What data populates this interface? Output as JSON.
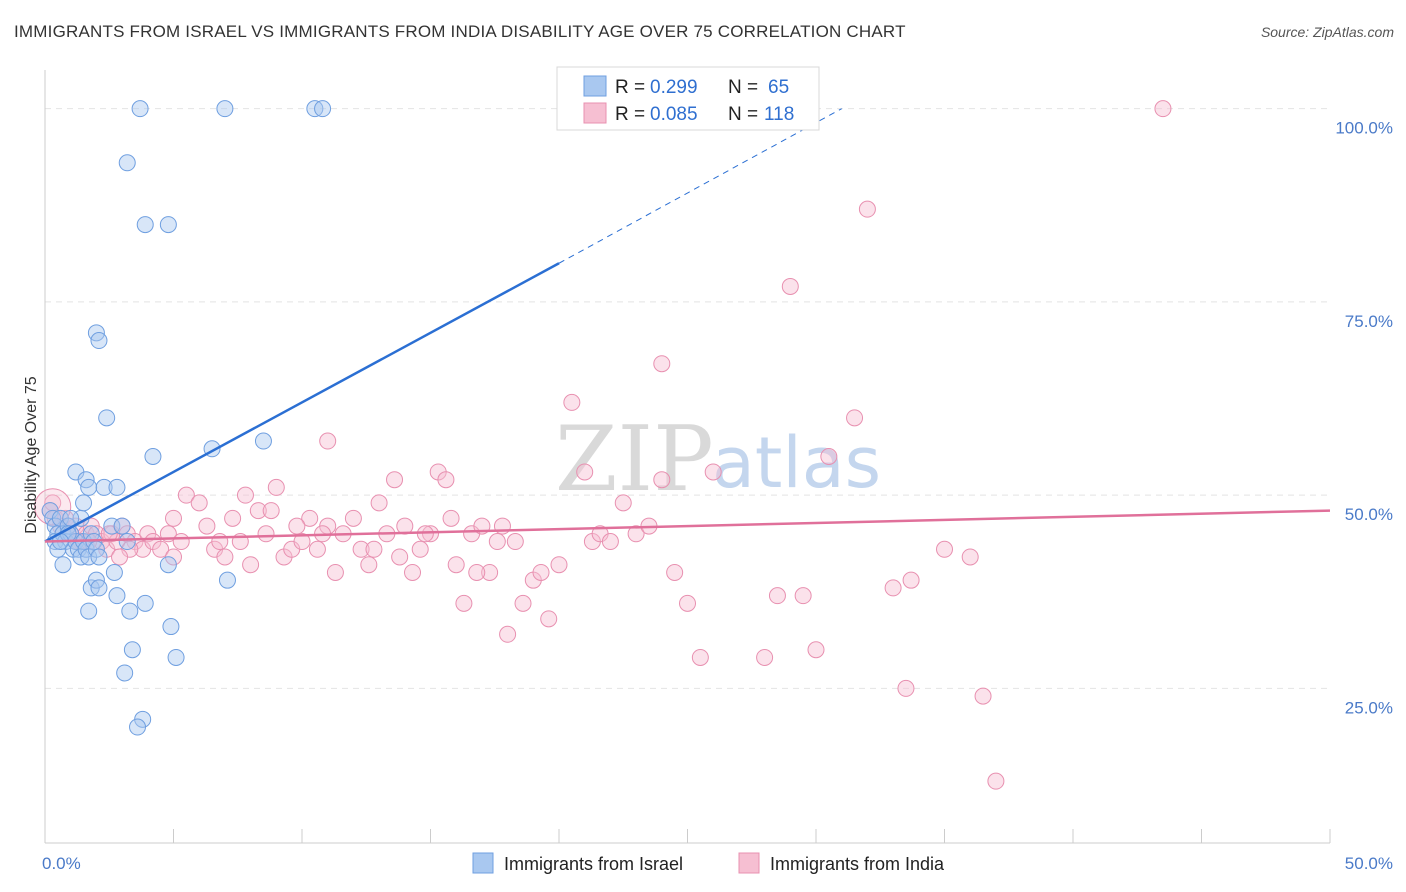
{
  "header": {
    "title": "IMMIGRANTS FROM ISRAEL VS IMMIGRANTS FROM INDIA DISABILITY AGE OVER 75 CORRELATION CHART",
    "source": "Source: ZipAtlas.com"
  },
  "watermark": {
    "zip": "ZIP",
    "atlas": "atlas"
  },
  "legend": {
    "rows": [
      {
        "r_label": "R =",
        "r_value": "0.299",
        "n_label": "N =",
        "n_value": "65"
      },
      {
        "r_label": "R =",
        "r_value": "0.085",
        "n_label": "N =",
        "n_value": "118"
      }
    ]
  },
  "bottom_legend": {
    "israel": "Immigrants from Israel",
    "india": "Immigrants from India"
  },
  "colors": {
    "israel_fill": "#a9c8f0",
    "israel_stroke": "#6f9fe0",
    "israel_line": "#2b6fd3",
    "india_fill": "#f6bfd2",
    "india_stroke": "#e890b0",
    "india_line": "#e0709a",
    "grid": "#e4e4e4",
    "tick_text": "#4a7ac8"
  },
  "chart_data": {
    "type": "scatter",
    "title": "IMMIGRANTS FROM ISRAEL VS IMMIGRANTS FROM INDIA DISABILITY AGE OVER 75 CORRELATION CHART",
    "xlabel": "",
    "ylabel": "Disability Age Over 75",
    "xlim": [
      0,
      50
    ],
    "ylim": [
      5,
      105
    ],
    "x_tick_labels": [
      "0.0%",
      "50.0%"
    ],
    "y_ticks": [
      25,
      50,
      75,
      100
    ],
    "y_tick_labels": [
      "25.0%",
      "50.0%",
      "75.0%",
      "100.0%"
    ],
    "grid": true,
    "legend_position": "top-center",
    "series": [
      {
        "name": "Immigrants from Israel",
        "r": 0.299,
        "n": 65,
        "trend": {
          "x0": 0,
          "y0": 44,
          "x1": 20,
          "y1": 80,
          "dashed_to_x": 31,
          "dashed_to_y": 100
        },
        "points": [
          [
            0.2,
            48
          ],
          [
            0.3,
            47
          ],
          [
            0.4,
            46
          ],
          [
            0.5,
            45
          ],
          [
            0.6,
            47
          ],
          [
            0.4,
            44
          ],
          [
            0.7,
            45
          ],
          [
            0.8,
            44
          ],
          [
            0.9,
            46
          ],
          [
            1.0,
            45
          ],
          [
            1.1,
            43
          ],
          [
            1.2,
            44
          ],
          [
            1.3,
            43
          ],
          [
            1.4,
            42
          ],
          [
            1.5,
            44
          ],
          [
            1.6,
            43
          ],
          [
            1.7,
            42
          ],
          [
            1.8,
            45
          ],
          [
            1.9,
            44
          ],
          [
            2.0,
            43
          ],
          [
            0.5,
            43
          ],
          [
            0.7,
            41
          ],
          [
            1.2,
            53
          ],
          [
            1.6,
            52
          ],
          [
            1.7,
            51
          ],
          [
            2.3,
            51
          ],
          [
            2.8,
            51
          ],
          [
            1.4,
            47
          ],
          [
            1.5,
            49
          ],
          [
            2.6,
            46
          ],
          [
            2.1,
            42
          ],
          [
            3.0,
            46
          ],
          [
            3.2,
            44
          ],
          [
            1.8,
            38
          ],
          [
            2.0,
            39
          ],
          [
            2.1,
            38
          ],
          [
            2.7,
            40
          ],
          [
            2.8,
            37
          ],
          [
            3.9,
            36
          ],
          [
            1.7,
            35
          ],
          [
            3.3,
            35
          ],
          [
            3.4,
            30
          ],
          [
            3.1,
            27
          ],
          [
            3.8,
            21
          ],
          [
            3.6,
            20
          ],
          [
            4.2,
            55
          ],
          [
            4.9,
            33
          ],
          [
            5.1,
            29
          ],
          [
            4.8,
            41
          ],
          [
            6.5,
            56
          ],
          [
            7.1,
            39
          ],
          [
            8.5,
            57
          ],
          [
            3.7,
            100
          ],
          [
            7.0,
            100
          ],
          [
            10.5,
            100
          ],
          [
            10.8,
            100
          ],
          [
            3.2,
            93
          ],
          [
            3.9,
            85
          ],
          [
            4.8,
            85
          ],
          [
            2.0,
            71
          ],
          [
            2.1,
            70
          ],
          [
            2.4,
            60
          ],
          [
            1.0,
            47
          ],
          [
            0.9,
            45
          ],
          [
            0.6,
            44
          ]
        ]
      },
      {
        "name": "Immigrants from India",
        "r": 0.085,
        "n": 118,
        "trend": {
          "x0": 0,
          "y0": 44,
          "x1": 50,
          "y1": 48
        },
        "points": [
          [
            0.2,
            48
          ],
          [
            0.4,
            47
          ],
          [
            0.6,
            46
          ],
          [
            0.8,
            47
          ],
          [
            1.0,
            45
          ],
          [
            1.2,
            46
          ],
          [
            1.4,
            44
          ],
          [
            1.6,
            45
          ],
          [
            1.8,
            46
          ],
          [
            2.0,
            45
          ],
          [
            2.2,
            44
          ],
          [
            2.4,
            43
          ],
          [
            2.6,
            45
          ],
          [
            2.8,
            44
          ],
          [
            3.0,
            46
          ],
          [
            3.2,
            45
          ],
          [
            3.5,
            44
          ],
          [
            3.8,
            43
          ],
          [
            4.0,
            45
          ],
          [
            4.2,
            44
          ],
          [
            4.5,
            43
          ],
          [
            4.8,
            45
          ],
          [
            5.0,
            42
          ],
          [
            5.3,
            44
          ],
          [
            5.5,
            50
          ],
          [
            6.0,
            49
          ],
          [
            6.3,
            46
          ],
          [
            6.6,
            43
          ],
          [
            7.0,
            42
          ],
          [
            7.3,
            47
          ],
          [
            7.6,
            44
          ],
          [
            8.0,
            41
          ],
          [
            8.3,
            48
          ],
          [
            8.6,
            45
          ],
          [
            9.0,
            51
          ],
          [
            9.3,
            42
          ],
          [
            9.6,
            43
          ],
          [
            10.0,
            44
          ],
          [
            10.3,
            47
          ],
          [
            10.6,
            43
          ],
          [
            11.0,
            46
          ],
          [
            11.3,
            40
          ],
          [
            11.6,
            45
          ],
          [
            12.0,
            47
          ],
          [
            12.3,
            43
          ],
          [
            12.6,
            41
          ],
          [
            13.0,
            49
          ],
          [
            13.3,
            45
          ],
          [
            13.6,
            52
          ],
          [
            14.0,
            46
          ],
          [
            14.3,
            40
          ],
          [
            14.6,
            43
          ],
          [
            15.0,
            45
          ],
          [
            15.3,
            53
          ],
          [
            15.6,
            52
          ],
          [
            16.0,
            41
          ],
          [
            16.3,
            36
          ],
          [
            16.6,
            45
          ],
          [
            17.0,
            46
          ],
          [
            17.3,
            40
          ],
          [
            17.6,
            44
          ],
          [
            18.0,
            32
          ],
          [
            18.3,
            44
          ],
          [
            18.6,
            36
          ],
          [
            19.0,
            39
          ],
          [
            19.3,
            40
          ],
          [
            19.6,
            34
          ],
          [
            20.0,
            41
          ],
          [
            20.5,
            62
          ],
          [
            21.0,
            53
          ],
          [
            21.3,
            44
          ],
          [
            21.6,
            45
          ],
          [
            22.0,
            44
          ],
          [
            22.5,
            49
          ],
          [
            23.0,
            45
          ],
          [
            23.5,
            46
          ],
          [
            24.0,
            52
          ],
          [
            24.5,
            40
          ],
          [
            25.0,
            36
          ],
          [
            25.5,
            29
          ],
          [
            26.0,
            53
          ],
          [
            28.0,
            29
          ],
          [
            28.5,
            37
          ],
          [
            29.5,
            37
          ],
          [
            30.0,
            30
          ],
          [
            29.0,
            77
          ],
          [
            30.5,
            55
          ],
          [
            32.0,
            87
          ],
          [
            33.0,
            38
          ],
          [
            33.5,
            25
          ],
          [
            33.7,
            39
          ],
          [
            35.0,
            43
          ],
          [
            36.0,
            42
          ],
          [
            36.5,
            24
          ],
          [
            37.0,
            13
          ],
          [
            24.0,
            67
          ],
          [
            31.5,
            60
          ],
          [
            43.5,
            100
          ],
          [
            11.0,
            57
          ],
          [
            5.0,
            47
          ],
          [
            1.3,
            44
          ],
          [
            2.5,
            45
          ],
          [
            3.3,
            43
          ],
          [
            6.8,
            44
          ],
          [
            7.8,
            50
          ],
          [
            8.8,
            48
          ],
          [
            9.8,
            46
          ],
          [
            10.8,
            45
          ],
          [
            12.8,
            43
          ],
          [
            13.8,
            42
          ],
          [
            14.8,
            45
          ],
          [
            15.8,
            47
          ],
          [
            16.8,
            40
          ],
          [
            17.8,
            46
          ],
          [
            0.3,
            49
          ],
          [
            0.9,
            46
          ],
          [
            1.7,
            44
          ],
          [
            2.9,
            42
          ]
        ]
      }
    ]
  }
}
